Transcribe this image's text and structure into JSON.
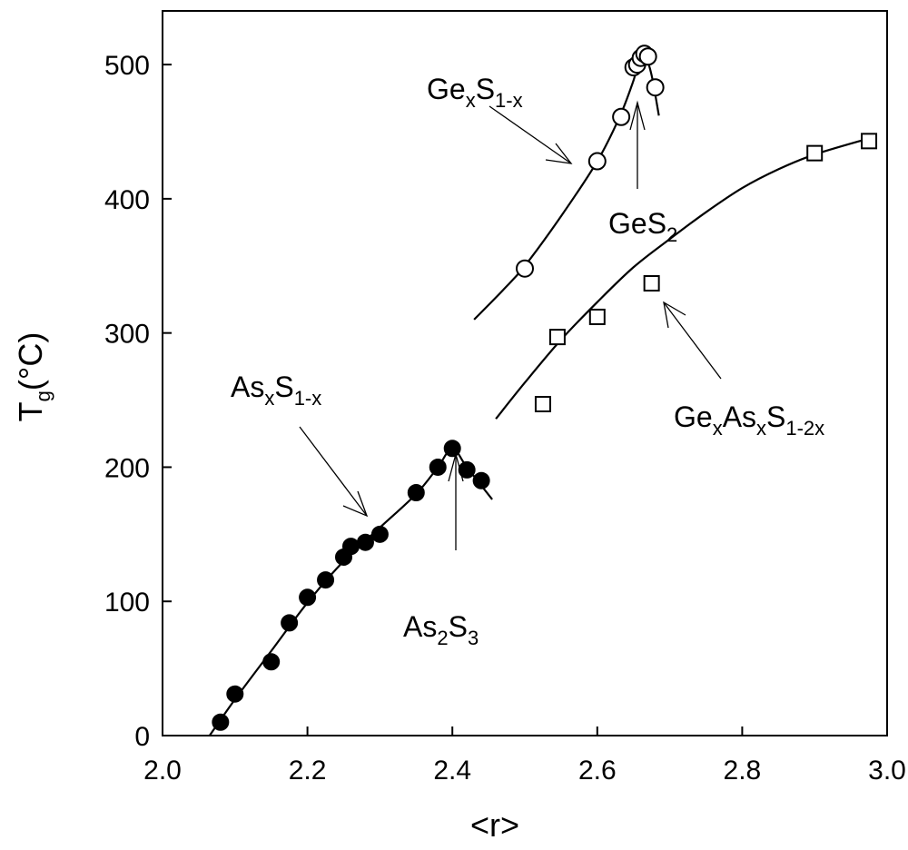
{
  "chart_data": {
    "type": "scatter",
    "title": "",
    "xlabel": "<r>",
    "ylabel": {
      "main": "T",
      "sub": "g",
      "rest": "(°C)"
    },
    "xlim": [
      2.0,
      3.0
    ],
    "ylim": [
      0,
      540
    ],
    "xticks": [
      "2.0",
      "2.2",
      "2.4",
      "2.6",
      "2.8",
      "3.0"
    ],
    "yticks": [
      "0",
      "100",
      "200",
      "300",
      "400",
      "500"
    ],
    "grid": false,
    "series": [
      {
        "key": "asS",
        "marker": "filled-circle",
        "label": {
          "base1": "As",
          "sub1": "x",
          "base2": "S",
          "sub2": "1-x"
        },
        "points": [
          {
            "x": 2.08,
            "y": 10
          },
          {
            "x": 2.1,
            "y": 31
          },
          {
            "x": 2.15,
            "y": 55
          },
          {
            "x": 2.175,
            "y": 84
          },
          {
            "x": 2.2,
            "y": 103
          },
          {
            "x": 2.225,
            "y": 116
          },
          {
            "x": 2.25,
            "y": 133
          },
          {
            "x": 2.26,
            "y": 141
          },
          {
            "x": 2.28,
            "y": 144
          },
          {
            "x": 2.3,
            "y": 150
          },
          {
            "x": 2.35,
            "y": 181
          },
          {
            "x": 2.38,
            "y": 200
          },
          {
            "x": 2.4,
            "y": 214
          },
          {
            "x": 2.42,
            "y": 198
          },
          {
            "x": 2.44,
            "y": 190
          }
        ],
        "fit": [
          [
            2.065,
            0
          ],
          [
            2.1,
            27
          ],
          [
            2.15,
            63
          ],
          [
            2.2,
            99
          ],
          [
            2.25,
            130
          ],
          [
            2.3,
            155
          ],
          [
            2.35,
            180
          ],
          [
            2.38,
            200
          ],
          [
            2.4,
            214
          ],
          [
            2.42,
            200
          ],
          [
            2.455,
            176
          ]
        ]
      },
      {
        "key": "geS",
        "marker": "open-circle",
        "label": {
          "base1": "Ge",
          "sub1": "x",
          "base2": "S",
          "sub2": "1-x"
        },
        "points": [
          {
            "x": 2.5,
            "y": 348
          },
          {
            "x": 2.6,
            "y": 428
          },
          {
            "x": 2.633,
            "y": 461
          },
          {
            "x": 2.65,
            "y": 498
          },
          {
            "x": 2.655,
            "y": 500
          },
          {
            "x": 2.66,
            "y": 505
          },
          {
            "x": 2.665,
            "y": 508
          },
          {
            "x": 2.67,
            "y": 506
          },
          {
            "x": 2.68,
            "y": 483
          }
        ],
        "fit": [
          [
            2.43,
            310
          ],
          [
            2.47,
            332
          ],
          [
            2.5,
            350
          ],
          [
            2.55,
            387
          ],
          [
            2.6,
            428
          ],
          [
            2.63,
            460
          ],
          [
            2.648,
            485
          ],
          [
            2.655,
            497
          ],
          [
            2.66,
            503
          ],
          [
            2.667,
            505
          ],
          [
            2.675,
            492
          ],
          [
            2.685,
            462
          ]
        ]
      },
      {
        "key": "geAsS",
        "marker": "open-square",
        "label": {
          "base1": "Ge",
          "sub1": "x",
          "base2": "As",
          "sub2": "x",
          "base3": "S",
          "sub3": "1-2x"
        },
        "points": [
          {
            "x": 2.525,
            "y": 247
          },
          {
            "x": 2.545,
            "y": 297
          },
          {
            "x": 2.6,
            "y": 312
          },
          {
            "x": 2.675,
            "y": 337
          },
          {
            "x": 2.9,
            "y": 434
          },
          {
            "x": 2.975,
            "y": 443
          }
        ],
        "fit": [
          [
            2.46,
            236
          ],
          [
            2.5,
            263
          ],
          [
            2.55,
            295
          ],
          [
            2.6,
            323
          ],
          [
            2.65,
            349
          ],
          [
            2.7,
            370
          ],
          [
            2.75,
            390
          ],
          [
            2.8,
            408
          ],
          [
            2.85,
            422
          ],
          [
            2.9,
            433
          ],
          [
            2.975,
            445
          ]
        ]
      }
    ],
    "annotations": [
      {
        "key": "as2s3",
        "text": {
          "base1": "As",
          "sub1": "2",
          "base2": "S",
          "sub2": "3"
        },
        "x": 2.4,
        "y": 214
      },
      {
        "key": "ges2",
        "text": {
          "base1": "GeS",
          "sub1": "2"
        },
        "x": 2.665,
        "y": 508
      }
    ]
  }
}
